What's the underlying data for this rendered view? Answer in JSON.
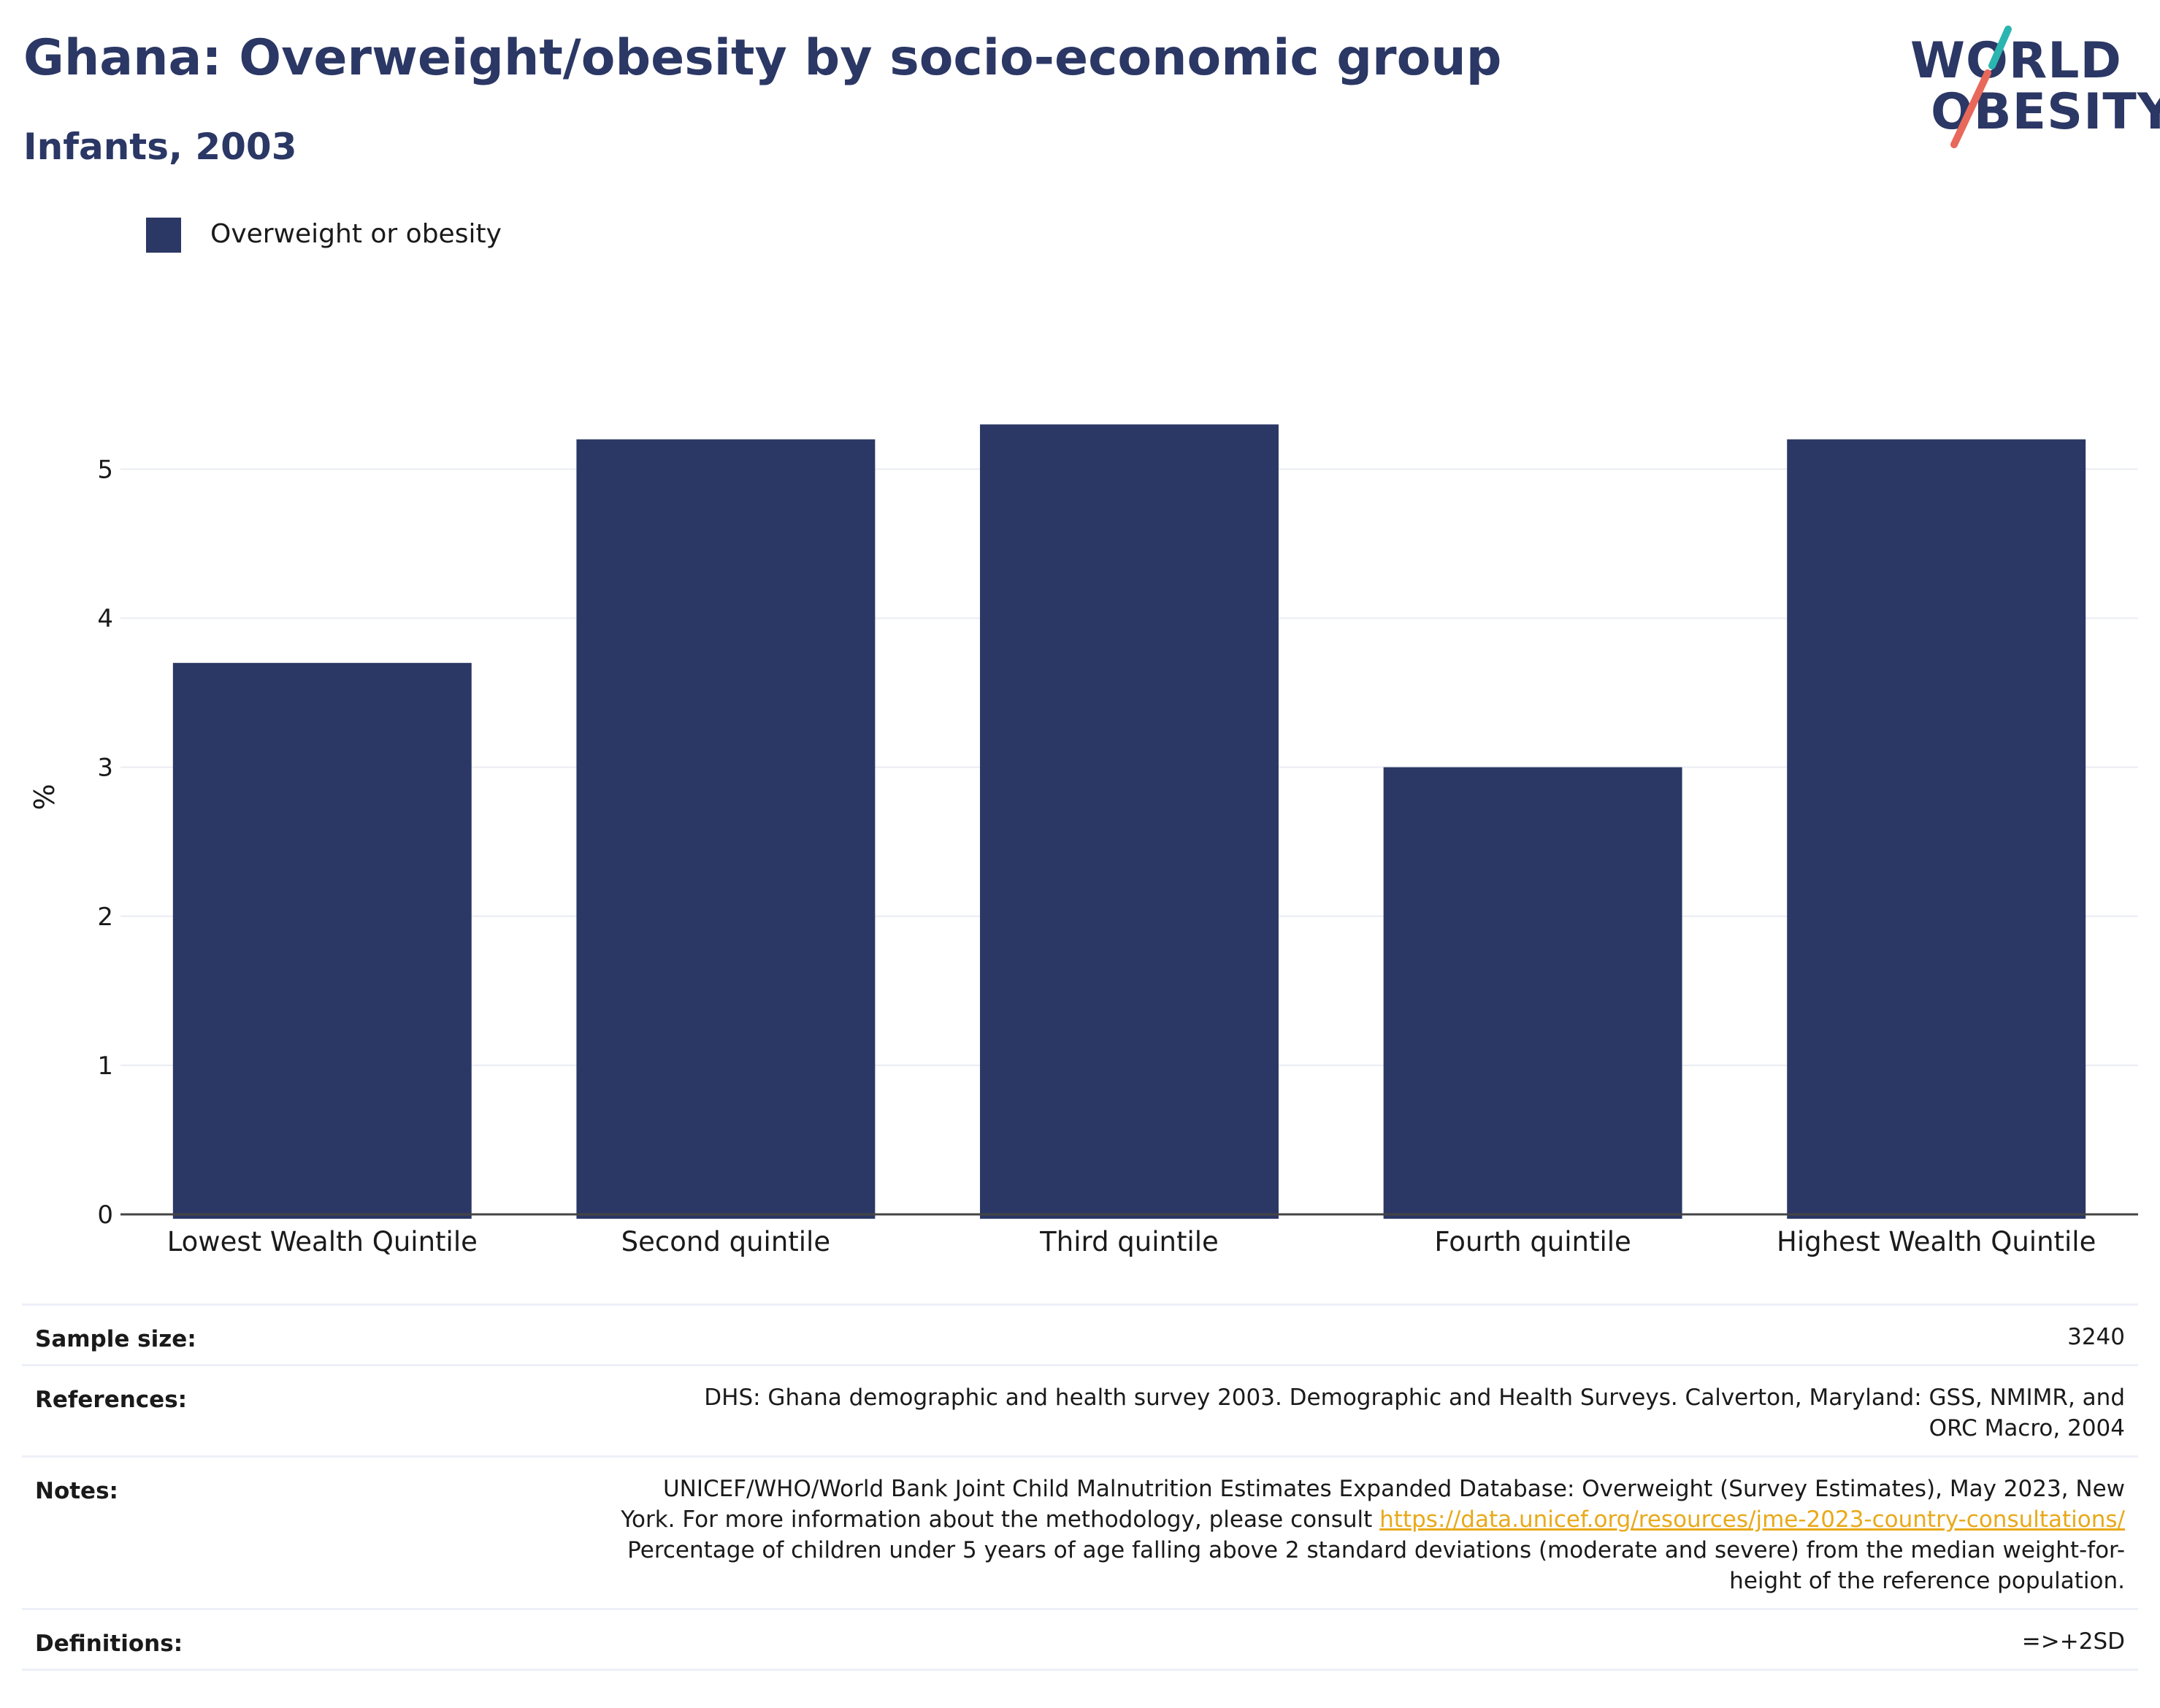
{
  "header": {
    "title": "Ghana: Overweight/obesity by socio-economic group",
    "subtitle": "Infants, 2003"
  },
  "logo": {
    "line1": "WORLD",
    "line2": "OBESITY",
    "accent_teal": "#2bb5b0",
    "accent_coral": "#e8685a"
  },
  "legend": {
    "label": "Overweight or obesity",
    "color": "#2b3764"
  },
  "chart_data": {
    "type": "bar",
    "categories": [
      "Lowest Wealth Quintile",
      "Second quintile",
      "Third quintile",
      "Fourth quintile",
      "Highest Wealth Quintile"
    ],
    "series": [
      {
        "name": "Overweight or obesity",
        "values": [
          3.7,
          5.2,
          5.3,
          3.0,
          5.2
        ],
        "color": "#2b3764"
      }
    ],
    "ylabel": "%",
    "ylim": [
      0,
      5.6
    ],
    "yticks": [
      0,
      1,
      2,
      3,
      4,
      5
    ],
    "grid": true,
    "legend_position": "top-left"
  },
  "footer": {
    "sample_size_label": "Sample size:",
    "sample_size_value": "3240",
    "references_label": "References:",
    "references_value": "DHS: Ghana demographic and health survey 2003. Demographic and Health Surveys. Calverton, Maryland: GSS, NMIMR, and ORC Macro, 2004",
    "notes_label": "Notes:",
    "notes_text_1": "UNICEF/WHO/World Bank Joint Child Malnutrition Estimates Expanded Database: Overweight (Survey Estimates), May 2023, New York. For more information about the methodology, please consult",
    "notes_link": "https://data.unicef.org/resources/jme-2023-country-consultations/",
    "notes_text_2": "Percentage of children under 5 years of age falling above 2 standard deviations (moderate and severe) from the median weight-for-height of the reference population.",
    "definitions_label": "Definitions:",
    "definitions_value": "=>+2SD"
  }
}
